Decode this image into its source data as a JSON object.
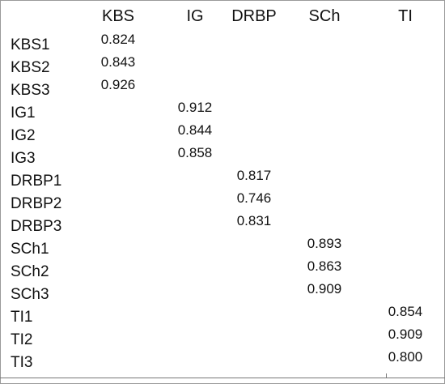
{
  "table": {
    "headers": [
      "KBS",
      "IG",
      "DRBP",
      "SCh",
      "TI"
    ],
    "rows": [
      {
        "label": "KBS1",
        "col": 0,
        "value": "0.824"
      },
      {
        "label": "KBS2",
        "col": 0,
        "value": "0.843"
      },
      {
        "label": "KBS3",
        "col": 0,
        "value": "0.926"
      },
      {
        "label": "IG1",
        "col": 1,
        "value": "0.912"
      },
      {
        "label": "IG2",
        "col": 1,
        "value": "0.844"
      },
      {
        "label": "IG3",
        "col": 1,
        "value": "0.858"
      },
      {
        "label": "DRBP1",
        "col": 2,
        "value": "0.817"
      },
      {
        "label": "DRBP2",
        "col": 2,
        "value": "0.746"
      },
      {
        "label": "DRBP3",
        "col": 2,
        "value": "0.831"
      },
      {
        "label": "SCh1",
        "col": 3,
        "value": "0.893"
      },
      {
        "label": "SCh2",
        "col": 3,
        "value": "0.863"
      },
      {
        "label": "SCh3",
        "col": 3,
        "value": "0.909"
      },
      {
        "label": "TI1",
        "col": 4,
        "value": "0.854"
      },
      {
        "label": "TI2",
        "col": 4,
        "value": "0.909"
      },
      {
        "label": "TI3",
        "col": 4,
        "value": "0.800"
      }
    ]
  }
}
